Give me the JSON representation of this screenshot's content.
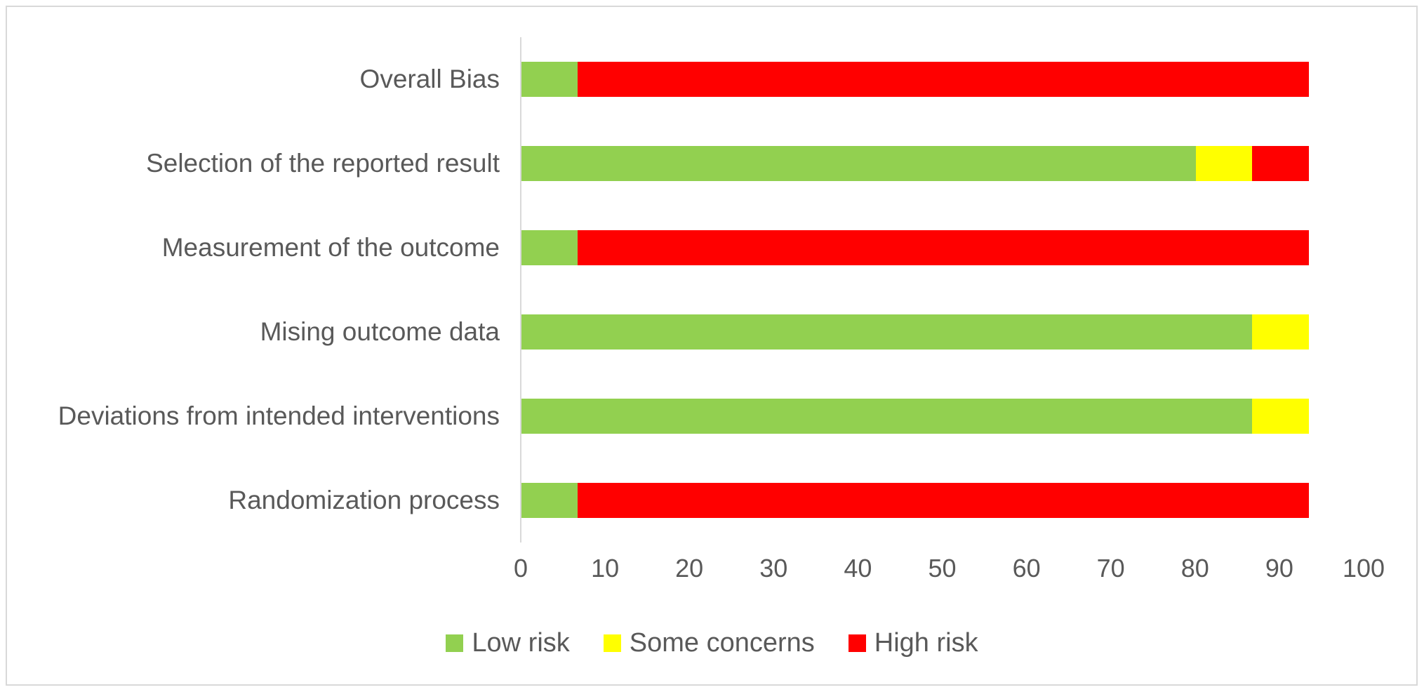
{
  "chart_data": {
    "type": "bar",
    "orientation": "horizontal",
    "stacked": true,
    "title": "",
    "xlabel": "",
    "ylabel": "",
    "categories_top_to_bottom": [
      "Overall Bias",
      "Selection of the reported result",
      "Measurement of the outcome",
      "Mising outcome data",
      "Deviations from intended interventions",
      "Randomization process"
    ],
    "series": [
      {
        "name": "Low risk",
        "color": "#92D050",
        "values": [
          6.7,
          80.0,
          6.7,
          86.7,
          86.7,
          6.7
        ]
      },
      {
        "name": "Some concerns",
        "color": "#FFFF00",
        "values": [
          0.0,
          6.7,
          0.0,
          6.7,
          6.7,
          0.0
        ]
      },
      {
        "name": "High risk",
        "color": "#FF0000",
        "values": [
          86.7,
          6.7,
          86.7,
          0.0,
          0.0,
          86.7
        ]
      }
    ],
    "x_axis": {
      "min": 0,
      "max": 100,
      "tick_interval": 10,
      "ticks": [
        "0",
        "10",
        "20",
        "30",
        "40",
        "50",
        "60",
        "70",
        "80",
        "90",
        "100"
      ]
    },
    "legend": {
      "position": "bottom",
      "entries": [
        "Low risk",
        "Some concerns",
        "High risk"
      ]
    },
    "grid": "off"
  },
  "style_colors": {
    "axis_line": "#d9d9d9",
    "frame_border": "#d9d9d9",
    "label_text": "#595959",
    "background": "#ffffff"
  }
}
